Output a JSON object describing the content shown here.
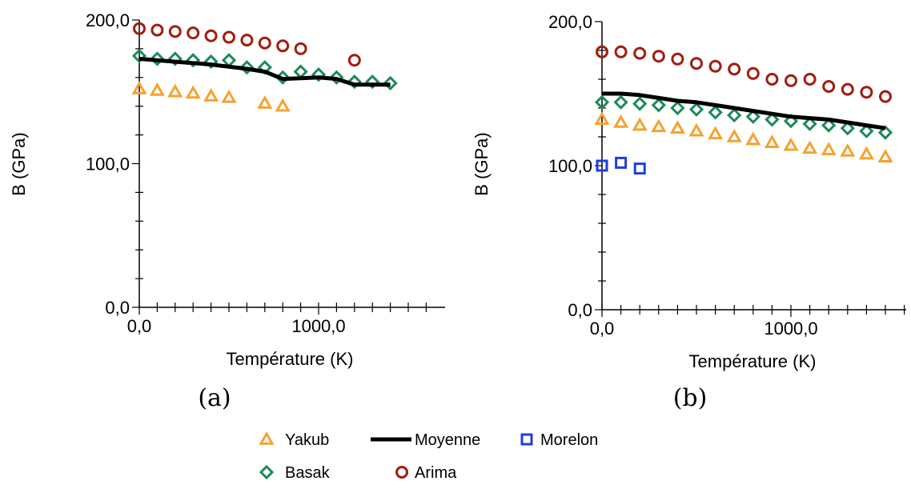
{
  "chart_data": [
    {
      "type": "scatter",
      "panel_label": "(a)",
      "xlabel": "Température (K)",
      "ylabel": "B (GPa)",
      "xlim": [
        0,
        1700
      ],
      "ylim": [
        0,
        200
      ],
      "xticks": [
        {
          "value": 0,
          "label": "0,0"
        },
        {
          "value": 1000,
          "label": "1000,0"
        }
      ],
      "yticks": [
        {
          "value": 0,
          "label": "0,0"
        },
        {
          "value": 100,
          "label": "100,0"
        },
        {
          "value": 200,
          "label": "200,0"
        }
      ],
      "series": [
        {
          "name": "Yakub",
          "marker": "triangle",
          "color": "#f5a230",
          "points": [
            [
              0,
              152
            ],
            [
              100,
              151
            ],
            [
              200,
              150
            ],
            [
              300,
              149
            ],
            [
              400,
              147
            ],
            [
              500,
              146
            ],
            [
              700,
              142
            ],
            [
              800,
              140
            ]
          ]
        },
        {
          "name": "Basak",
          "marker": "diamond",
          "color": "#1b8a5a",
          "points": [
            [
              0,
              175
            ],
            [
              100,
              173
            ],
            [
              200,
              173
            ],
            [
              300,
              172
            ],
            [
              400,
              171
            ],
            [
              500,
              172
            ],
            [
              600,
              167
            ],
            [
              700,
              167
            ],
            [
              800,
              160
            ],
            [
              900,
              164
            ],
            [
              1000,
              162
            ],
            [
              1100,
              160
            ],
            [
              1200,
              157
            ],
            [
              1300,
              157
            ],
            [
              1400,
              156
            ]
          ]
        },
        {
          "name": "Arima",
          "marker": "circle",
          "color": "#a01e10",
          "points": [
            [
              0,
              194
            ],
            [
              100,
              193
            ],
            [
              200,
              192
            ],
            [
              300,
              191
            ],
            [
              400,
              189
            ],
            [
              500,
              188
            ],
            [
              600,
              186
            ],
            [
              700,
              184
            ],
            [
              800,
              182
            ],
            [
              900,
              180
            ],
            [
              1200,
              172
            ]
          ]
        },
        {
          "name": "Moyenne",
          "marker": "line",
          "color": "#000000",
          "points": [
            [
              0,
              173
            ],
            [
              200,
              171
            ],
            [
              400,
              169
            ],
            [
              600,
              166
            ],
            [
              700,
              164
            ],
            [
              800,
              159
            ],
            [
              1000,
              160
            ],
            [
              1100,
              159
            ],
            [
              1200,
              155
            ],
            [
              1400,
              155
            ]
          ]
        }
      ]
    },
    {
      "type": "scatter",
      "panel_label": "(b)",
      "xlabel": "Température (K)",
      "ylabel": "B (GPa)",
      "xlim": [
        0,
        1650
      ],
      "ylim": [
        0,
        200
      ],
      "xticks": [
        {
          "value": 0,
          "label": "0,0"
        },
        {
          "value": 1000,
          "label": "1000,0"
        }
      ],
      "yticks": [
        {
          "value": 0,
          "label": "0,0"
        },
        {
          "value": 100,
          "label": "100,0"
        },
        {
          "value": 200,
          "label": "200,0"
        }
      ],
      "series": [
        {
          "name": "Yakub",
          "marker": "triangle",
          "color": "#f5a230",
          "points": [
            [
              0,
              132
            ],
            [
              100,
              130
            ],
            [
              200,
              128
            ],
            [
              300,
              127
            ],
            [
              400,
              126
            ],
            [
              500,
              124
            ],
            [
              600,
              122
            ],
            [
              700,
              120
            ],
            [
              800,
              118
            ],
            [
              900,
              116
            ],
            [
              1000,
              114
            ],
            [
              1100,
              112
            ],
            [
              1200,
              111
            ],
            [
              1300,
              110
            ],
            [
              1400,
              108
            ],
            [
              1500,
              106
            ]
          ]
        },
        {
          "name": "Basak",
          "marker": "diamond",
          "color": "#1b8a5a",
          "points": [
            [
              0,
              144
            ],
            [
              100,
              144
            ],
            [
              200,
              143
            ],
            [
              300,
              142
            ],
            [
              400,
              140
            ],
            [
              500,
              139
            ],
            [
              600,
              137
            ],
            [
              700,
              135
            ],
            [
              800,
              134
            ],
            [
              900,
              132
            ],
            [
              1000,
              131
            ],
            [
              1100,
              129
            ],
            [
              1200,
              128
            ],
            [
              1300,
              126
            ],
            [
              1400,
              124
            ],
            [
              1500,
              123
            ]
          ]
        },
        {
          "name": "Arima",
          "marker": "circle",
          "color": "#a01e10",
          "points": [
            [
              0,
              179
            ],
            [
              100,
              179
            ],
            [
              200,
              178
            ],
            [
              300,
              176
            ],
            [
              400,
              174
            ],
            [
              500,
              171
            ],
            [
              600,
              169
            ],
            [
              700,
              167
            ],
            [
              800,
              164
            ],
            [
              900,
              160
            ],
            [
              1000,
              159
            ],
            [
              1100,
              160
            ],
            [
              1200,
              155
            ],
            [
              1300,
              153
            ],
            [
              1400,
              151
            ],
            [
              1500,
              148
            ]
          ]
        },
        {
          "name": "Morelon",
          "marker": "square",
          "color": "#1f3fd6",
          "points": [
            [
              0,
              100
            ],
            [
              100,
              102
            ],
            [
              200,
              98
            ]
          ]
        },
        {
          "name": "Moyenne",
          "marker": "line",
          "color": "#000000",
          "points": [
            [
              0,
              150
            ],
            [
              100,
              150
            ],
            [
              200,
              149
            ],
            [
              300,
              147
            ],
            [
              400,
              145
            ],
            [
              500,
              144
            ],
            [
              600,
              142
            ],
            [
              700,
              140
            ],
            [
              800,
              138
            ],
            [
              900,
              136
            ],
            [
              1000,
              134
            ],
            [
              1100,
              133
            ],
            [
              1200,
              132
            ],
            [
              1300,
              130
            ],
            [
              1400,
              128
            ],
            [
              1500,
              126
            ]
          ]
        }
      ]
    }
  ],
  "legend": {
    "placement": "bottom-center",
    "items": [
      {
        "name": "Yakub",
        "marker": "triangle",
        "color": "#f5a230"
      },
      {
        "name": "Moyenne",
        "marker": "line",
        "color": "#000000"
      },
      {
        "name": "Morelon",
        "marker": "square",
        "color": "#1f3fd6"
      },
      {
        "name": "Basak",
        "marker": "diamond",
        "color": "#1b8a5a"
      },
      {
        "name": "Arima",
        "marker": "circle",
        "color": "#a01e10"
      }
    ]
  }
}
